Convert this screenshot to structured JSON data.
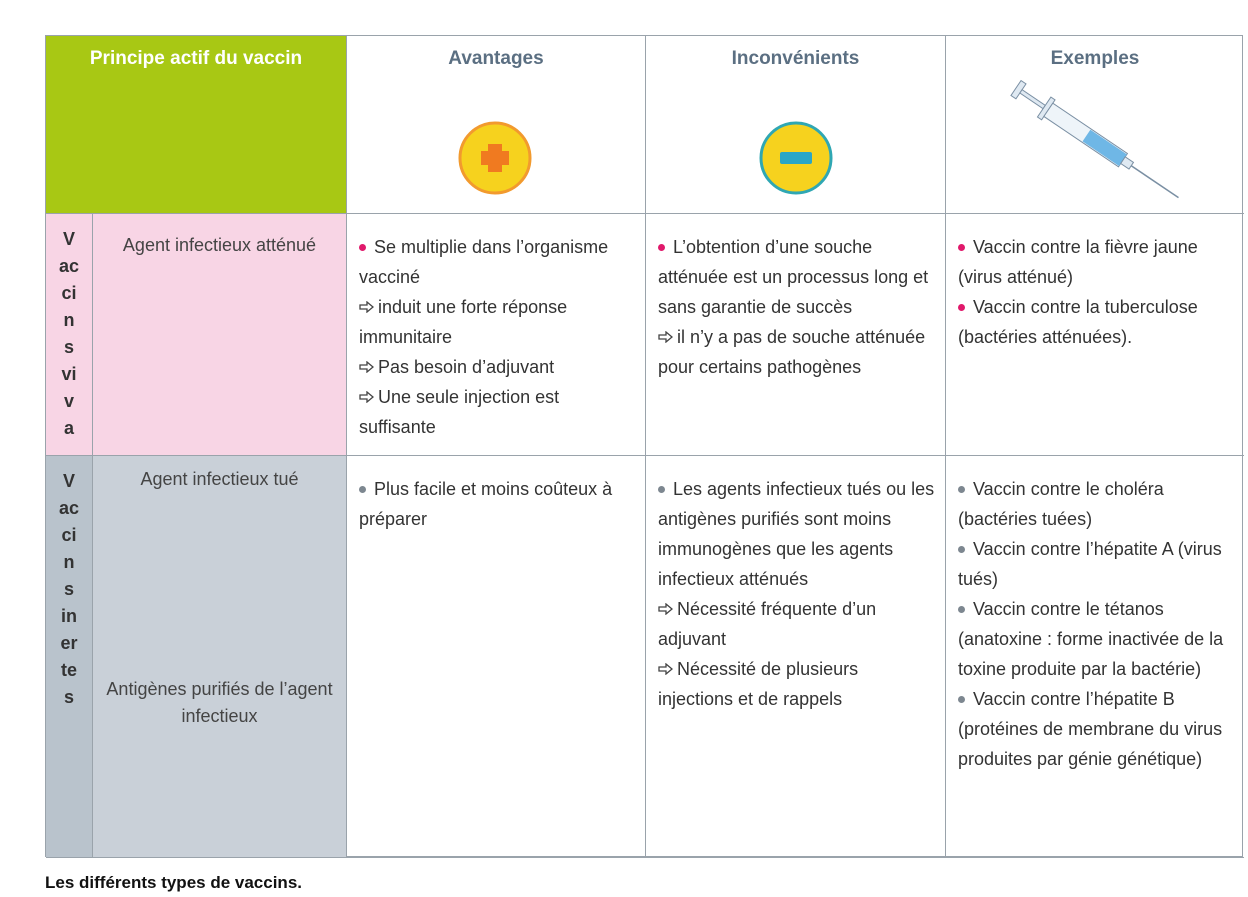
{
  "table": {
    "headers": [
      "Principe actif du vaccin",
      "Avantages",
      "Inconvénients",
      "Exemples"
    ],
    "rows": [
      {
        "group": [
          "V",
          "ac",
          "ci",
          "n",
          "s",
          "vi",
          "v",
          "a"
        ],
        "agents": [
          "Agent infectieux atténué"
        ],
        "avantages": [
          {
            "text": "Se multiplie dans l’organisme vacciné",
            "consequences": [
              "induit une forte réponse immunitaire",
              "Pas besoin d’adjuvant",
              "Une seule injection est suffisante"
            ]
          }
        ],
        "inconvenients": [
          {
            "text": "L’obtention d’une souche atténuée est un processus long et sans garantie de succès",
            "consequences": [
              "il n’y a pas de souche atténuée pour certains pathogènes"
            ]
          }
        ],
        "exemples": [
          {
            "text": "Vaccin contre la fièvre jaune (virus atténué)"
          },
          {
            "text": "Vaccin contre la tuberculose (bactéries atténuées)."
          }
        ]
      },
      {
        "group": [
          "V",
          "ac",
          "ci",
          "n",
          "s",
          "in",
          "er",
          "te",
          "s"
        ],
        "agents": [
          "Agent infectieux tué",
          "Antigènes purifiés de l’agent infectieux"
        ],
        "avantages": [
          {
            "text": "Plus facile et moins coûteux à préparer"
          }
        ],
        "inconvenients": [
          {
            "text": "Les agents infectieux tués ou les antigènes purifiés sont moins immunogènes que les agents infectieux atténués",
            "consequences": [
              "Nécessité fréquente d’un adjuvant",
              "Nécessité de plusieurs injections et de rappels"
            ]
          }
        ],
        "exemples": [
          {
            "text": "Vaccin contre le choléra (bactéries tuées)"
          },
          {
            "text": "Vaccin contre l’hépatite A (virus tués)"
          },
          {
            "text": "Vaccin contre le tétanos (anatoxine : forme inactivée de la toxine produite par la bactérie)"
          },
          {
            "text": "Vaccin contre l’hépatite B (protéines de membrane du virus produites par génie génétique)"
          }
        ]
      }
    ],
    "caption": "Les différents types de vaccins."
  }
}
